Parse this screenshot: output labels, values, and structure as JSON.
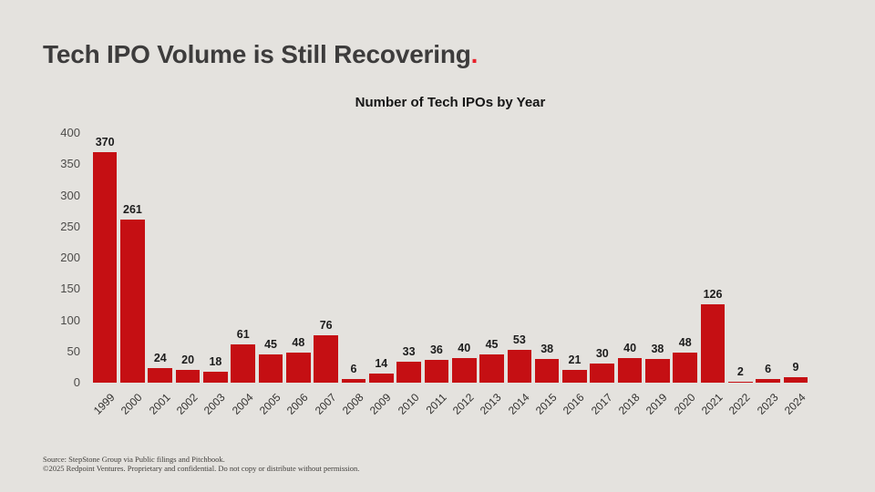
{
  "slide": {
    "title": "Tech IPO Volume is Still Recovering",
    "title_period": ".",
    "footer_line1": "Source: StepStone Group via Public filings and Pitchbook.",
    "footer_line2": "©2025 Redpoint Ventures. Proprietary and confidential. Do not copy or distribute without permission."
  },
  "colors": {
    "background": "#e4e2de",
    "bar": "#c50f13",
    "accent_red": "#e8212b",
    "title_text": "#3d3c3c",
    "axis_text": "#4d4c4a",
    "value_label_text": "#1c1c1c"
  },
  "chart_data": {
    "type": "bar",
    "title": "Number of Tech IPOs by Year",
    "categories": [
      "1999",
      "2000",
      "2001",
      "2002",
      "2003",
      "2004",
      "2005",
      "2006",
      "2007",
      "2008",
      "2009",
      "2010",
      "2011",
      "2012",
      "2013",
      "2014",
      "2015",
      "2016",
      "2017",
      "2018",
      "2019",
      "2020",
      "2021",
      "2022",
      "2023",
      "2024"
    ],
    "values": [
      370,
      261,
      24,
      20,
      18,
      61,
      45,
      48,
      76,
      6,
      14,
      33,
      36,
      40,
      45,
      53,
      38,
      21,
      30,
      40,
      38,
      48,
      126,
      2,
      6,
      9
    ],
    "xlabel": "",
    "ylabel": "",
    "ylim": [
      0,
      400
    ],
    "yticks": [
      0,
      50,
      100,
      150,
      200,
      250,
      300,
      350,
      400
    ],
    "grid": false,
    "legend": "none",
    "bar_color": "#c50f13",
    "value_labels_shown": true,
    "x_tick_rotation_deg": 45
  }
}
